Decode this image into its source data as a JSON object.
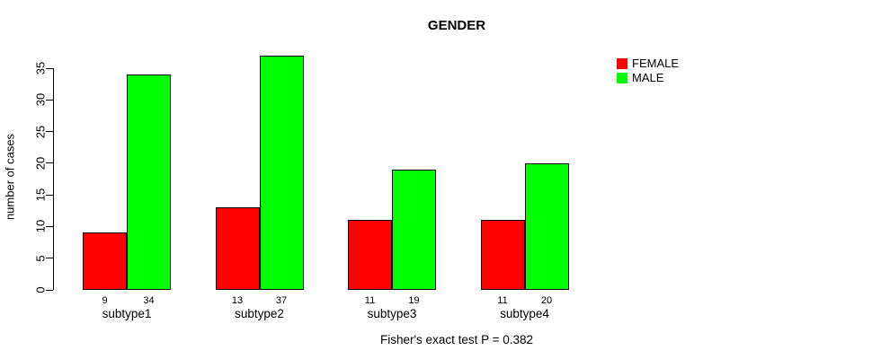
{
  "chart_data": {
    "type": "bar",
    "title": "GENDER",
    "xlabel": "",
    "ylabel": "number of cases",
    "categories": [
      "subtype1",
      "subtype2",
      "subtype3",
      "subtype4"
    ],
    "series": [
      {
        "name": "FEMALE",
        "color": "#ff0000",
        "values": [
          9,
          13,
          11,
          11
        ]
      },
      {
        "name": "MALE",
        "color": "#00ff00",
        "values": [
          34,
          37,
          19,
          20
        ]
      }
    ],
    "y_ticks": [
      0,
      5,
      10,
      15,
      20,
      25,
      30,
      35
    ],
    "ylim": [
      0,
      35
    ],
    "grid": false,
    "bar_value_labels": true,
    "legend_position": "top-right"
  },
  "caption": "Fisher's exact test P = 0.382"
}
